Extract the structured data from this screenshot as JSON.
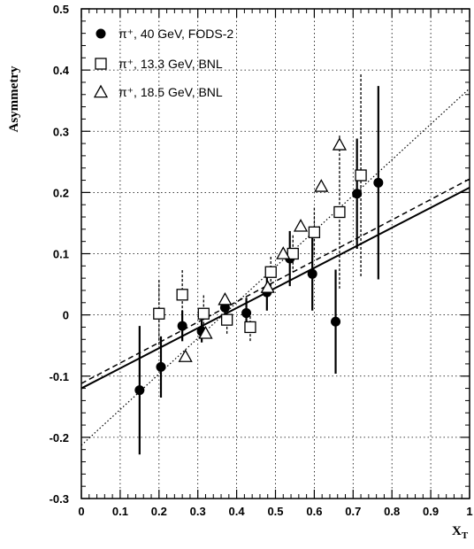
{
  "chart_data": {
    "type": "scatter",
    "title": "",
    "xlabel": "X",
    "xlabel_sub": "T",
    "ylabel": "Asymmetry",
    "xlim": [
      0,
      1
    ],
    "ylim": [
      -0.3,
      0.5
    ],
    "grid": true,
    "legend_position": "top-left",
    "x_ticks": [
      "0",
      "0.1",
      "0.2",
      "0.3",
      "0.4",
      "0.5",
      "0.6",
      "0.7",
      "0.8",
      "0.9",
      "1"
    ],
    "x_tick_values": [
      0,
      0.1,
      0.2,
      0.3,
      0.4,
      0.5,
      0.6,
      0.7,
      0.8,
      0.9,
      1
    ],
    "y_ticks": [
      "-0.3",
      "-0.2",
      "-0.1",
      "0",
      "0.1",
      "0.2",
      "0.3",
      "0.4",
      "0.5"
    ],
    "y_tick_values": [
      -0.3,
      -0.2,
      -0.1,
      0,
      0.1,
      0.2,
      0.3,
      0.4,
      0.5
    ],
    "series": [
      {
        "name": "π⁺, 40 GeV, FODS-2",
        "marker": "filled-circle",
        "error_style": "solid",
        "points": [
          {
            "x": 0.15,
            "y": -0.123,
            "err": 0.105
          },
          {
            "x": 0.205,
            "y": -0.085,
            "err": 0.05
          },
          {
            "x": 0.26,
            "y": -0.018,
            "err": 0.025
          },
          {
            "x": 0.31,
            "y": -0.027,
            "err": 0.018
          },
          {
            "x": 0.37,
            "y": 0.012,
            "err": 0.018
          },
          {
            "x": 0.425,
            "y": 0.003,
            "err": 0.025
          },
          {
            "x": 0.478,
            "y": 0.037,
            "err": 0.03
          },
          {
            "x": 0.537,
            "y": 0.092,
            "err": 0.045
          },
          {
            "x": 0.595,
            "y": 0.067,
            "err": 0.06
          },
          {
            "x": 0.655,
            "y": -0.011,
            "err": 0.085
          },
          {
            "x": 0.71,
            "y": 0.198,
            "err": 0.09
          },
          {
            "x": 0.765,
            "y": 0.216,
            "err": 0.158
          }
        ]
      },
      {
        "name": "π⁺, 13.3 GeV, BNL",
        "marker": "open-square",
        "error_style": "dashed",
        "points": [
          {
            "x": 0.2,
            "y": 0.002,
            "err": 0.055
          },
          {
            "x": 0.26,
            "y": 0.033,
            "err": 0.04
          },
          {
            "x": 0.315,
            "y": 0.002,
            "err": 0.03
          },
          {
            "x": 0.375,
            "y": -0.008,
            "err": 0.025
          },
          {
            "x": 0.435,
            "y": -0.02,
            "err": 0.025
          },
          {
            "x": 0.488,
            "y": 0.07,
            "err": 0.025
          },
          {
            "x": 0.545,
            "y": 0.1,
            "err": 0.03
          },
          {
            "x": 0.6,
            "y": 0.135,
            "err": 0.04
          },
          {
            "x": 0.665,
            "y": 0.168,
            "err": 0.125
          },
          {
            "x": 0.72,
            "y": 0.228,
            "err": 0.165
          }
        ]
      },
      {
        "name": "π⁺, 18.5 GeV, BNL",
        "marker": "open-triangle",
        "error_style": "none",
        "points": [
          {
            "x": 0.268,
            "y": -0.068
          },
          {
            "x": 0.32,
            "y": -0.03
          },
          {
            "x": 0.37,
            "y": 0.025
          },
          {
            "x": 0.48,
            "y": 0.045
          },
          {
            "x": 0.52,
            "y": 0.1
          },
          {
            "x": 0.565,
            "y": 0.145
          },
          {
            "x": 0.618,
            "y": 0.21
          },
          {
            "x": 0.665,
            "y": 0.278
          }
        ]
      }
    ],
    "fit_lines": [
      {
        "style": "solid",
        "y_at_0": -0.12,
        "y_at_1": 0.208
      },
      {
        "style": "dashed",
        "y_at_0": -0.112,
        "y_at_1": 0.222
      },
      {
        "style": "dotted",
        "y_at_0": -0.213,
        "y_at_1": 0.37
      }
    ]
  }
}
